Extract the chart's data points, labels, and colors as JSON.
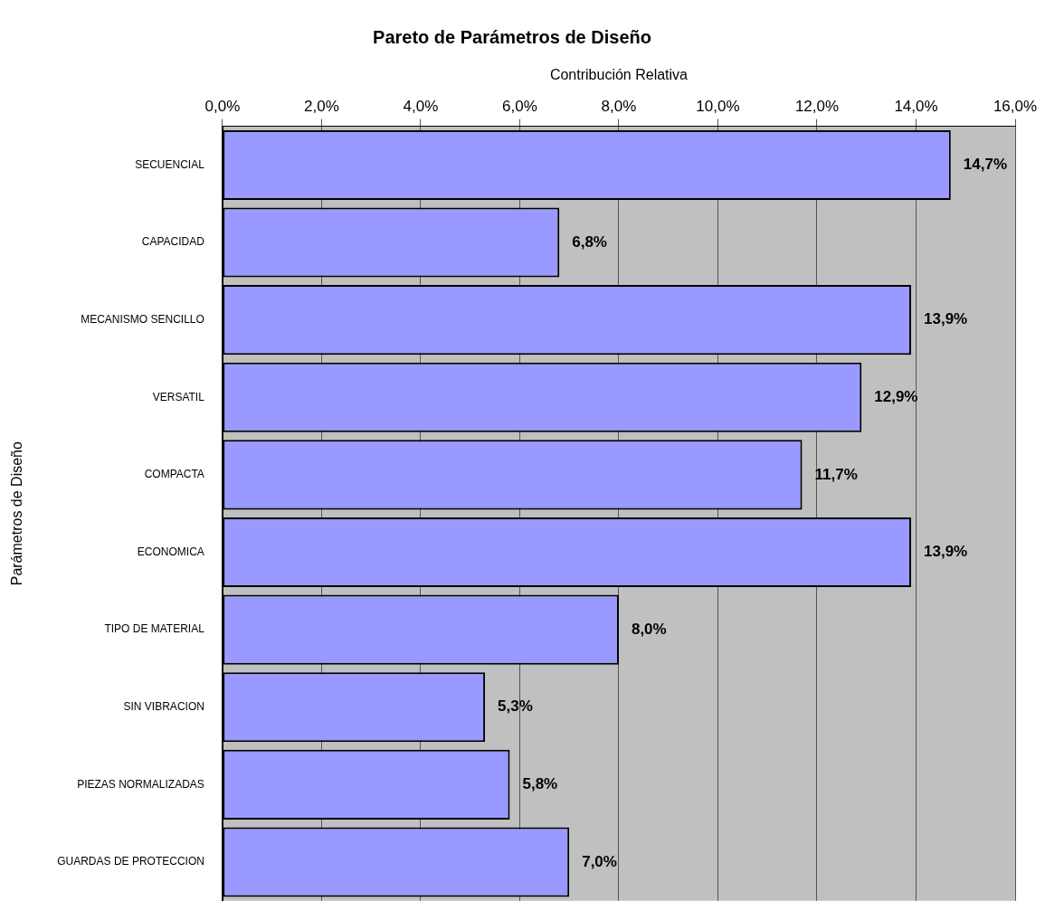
{
  "chart_data": {
    "type": "bar",
    "orientation": "horizontal",
    "title": "Pareto de Parámetros de Diseño",
    "xlabel": "Contribución Relativa",
    "ylabel": "Parámetros de Diseño",
    "categories": [
      "SECUENCIAL",
      "CAPACIDAD",
      "MECANISMO SENCILLO",
      "VERSATIL",
      "COMPACTA",
      "ECONOMICA",
      "TIPO DE MATERIAL",
      "SIN VIBRACION",
      "PIEZAS NORMALIZADAS",
      "GUARDAS DE PROTECCION"
    ],
    "values": [
      14.7,
      6.8,
      13.9,
      12.9,
      11.7,
      13.9,
      8.0,
      5.3,
      5.8,
      7.0
    ],
    "value_labels": [
      "14,7%",
      "6,8%",
      "13,9%",
      "12,9%",
      "11,7%",
      "13,9%",
      "8,0%",
      "5,3%",
      "5,8%",
      "7,0%"
    ],
    "color": "#9999ff",
    "xlim": [
      0,
      16
    ],
    "xticks": [
      {
        "value": 0,
        "label": "0,0%"
      },
      {
        "value": 2,
        "label": "2,0%"
      },
      {
        "value": 4,
        "label": "4,0%"
      },
      {
        "value": 6,
        "label": "6,0%"
      },
      {
        "value": 8,
        "label": "8,0%"
      },
      {
        "value": 10,
        "label": "10,0%"
      },
      {
        "value": 12,
        "label": "12,0%"
      },
      {
        "value": 14,
        "label": "14,0%"
      },
      {
        "value": 16,
        "label": "16,0%"
      }
    ],
    "grid": "x",
    "legend": false
  }
}
